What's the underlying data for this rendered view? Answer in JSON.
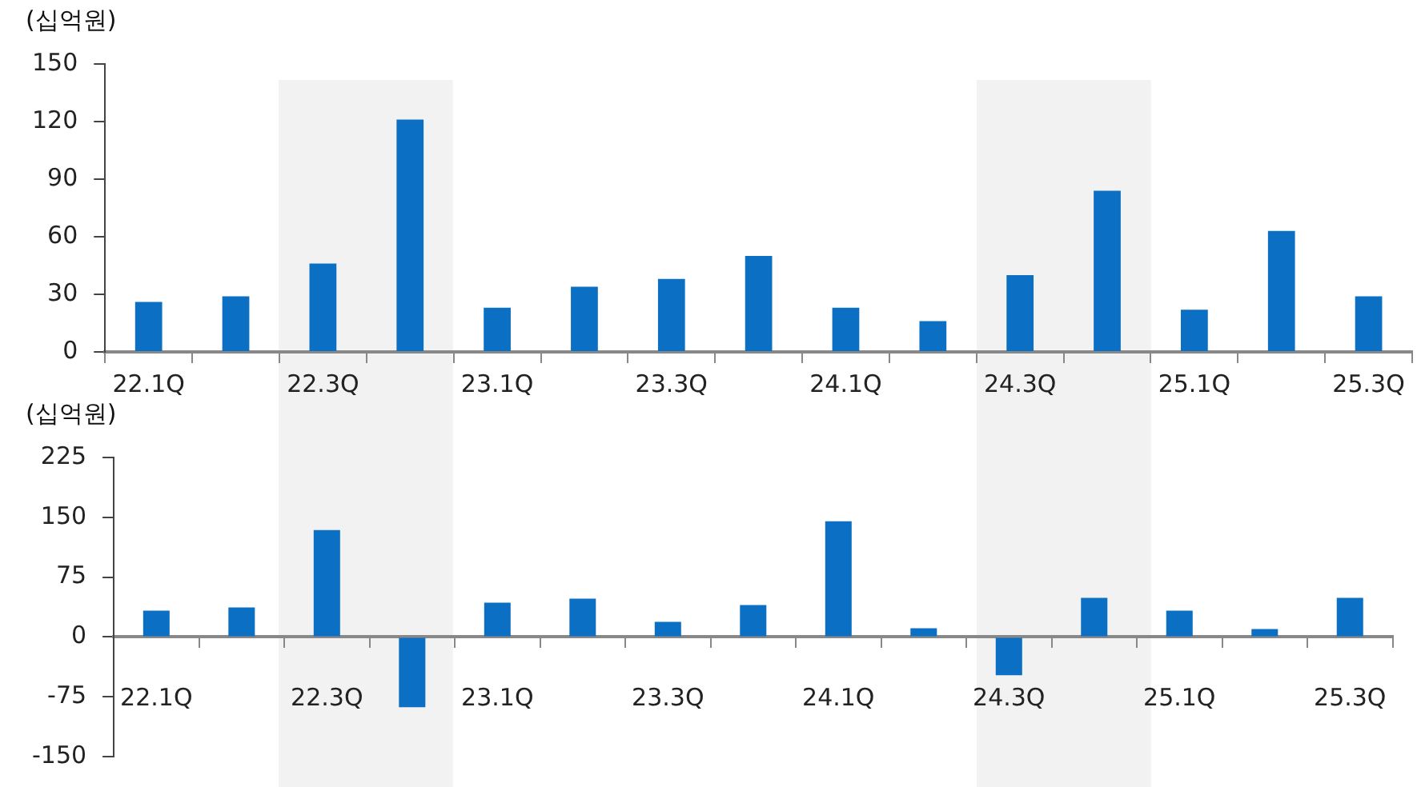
{
  "chart_data": [
    {
      "type": "bar",
      "ylabel": "(십억원)",
      "categories": [
        "22.1Q",
        null,
        "22.3Q",
        null,
        "23.1Q",
        null,
        "23.3Q",
        null,
        "24.1Q",
        null,
        "24.3Q",
        null,
        "25.1Q",
        null,
        "25.3Q"
      ],
      "series": [
        {
          "color": "#0b70c4",
          "values": [
            26,
            29,
            46,
            121,
            23,
            34,
            38,
            50,
            23,
            16,
            40,
            84,
            22,
            63,
            29
          ]
        }
      ],
      "ylim": [
        0,
        150
      ],
      "yticks": [
        0,
        30,
        60,
        90,
        120,
        150
      ],
      "grid": false,
      "legend": false
    },
    {
      "type": "bar",
      "ylabel": "(십억원)",
      "categories": [
        "22.1Q",
        null,
        "22.3Q",
        null,
        "23.1Q",
        null,
        "23.3Q",
        null,
        "24.1Q",
        null,
        "24.3Q",
        null,
        "25.1Q",
        null,
        "25.3Q"
      ],
      "series": [
        {
          "color": "#0b70c4",
          "values": [
            33,
            37,
            134,
            -88,
            43,
            48,
            19,
            40,
            145,
            11,
            -48,
            49,
            33,
            10,
            49
          ]
        }
      ],
      "ylim": [
        -150,
        225
      ],
      "yticks": [
        -150,
        -75,
        0,
        75,
        150,
        225
      ],
      "grid": false,
      "legend": false
    }
  ]
}
